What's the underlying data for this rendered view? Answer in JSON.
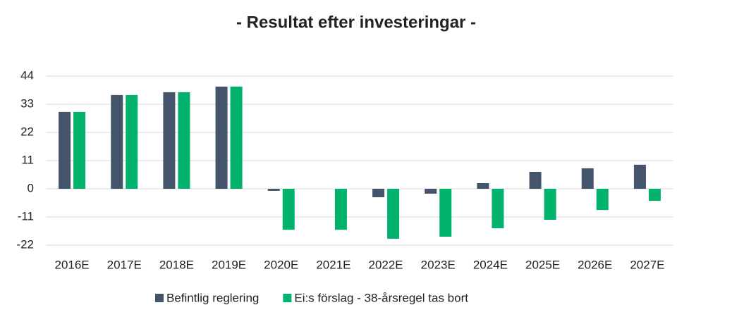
{
  "chart_data": {
    "type": "bar",
    "title": "- Resultat efter investeringar -",
    "categories": [
      "2016E",
      "2017E",
      "2018E",
      "2019E",
      "2020E",
      "2021E",
      "2022E",
      "2023E",
      "2024E",
      "2025E",
      "2026E",
      "2027E"
    ],
    "series": [
      {
        "name": "Befintlig reglering",
        "color": "#44546a",
        "values": [
          30.0,
          36.6,
          37.7,
          39.9,
          -0.8,
          0,
          -3.3,
          -1.9,
          2.2,
          6.6,
          8.0,
          9.4
        ]
      },
      {
        "name": "Ei:s förslag - 38-årsregel tas bort",
        "color": "#00b26b",
        "values": [
          30.0,
          36.6,
          37.7,
          39.9,
          -16.0,
          -16.0,
          -19.5,
          -18.7,
          -15.4,
          -12.1,
          -8.3,
          -4.7
        ]
      }
    ],
    "ylim": [
      -22,
      44
    ],
    "yticks": [
      -22,
      -11,
      0,
      11,
      22,
      33,
      44
    ],
    "grid": true,
    "legend": "bottom"
  }
}
